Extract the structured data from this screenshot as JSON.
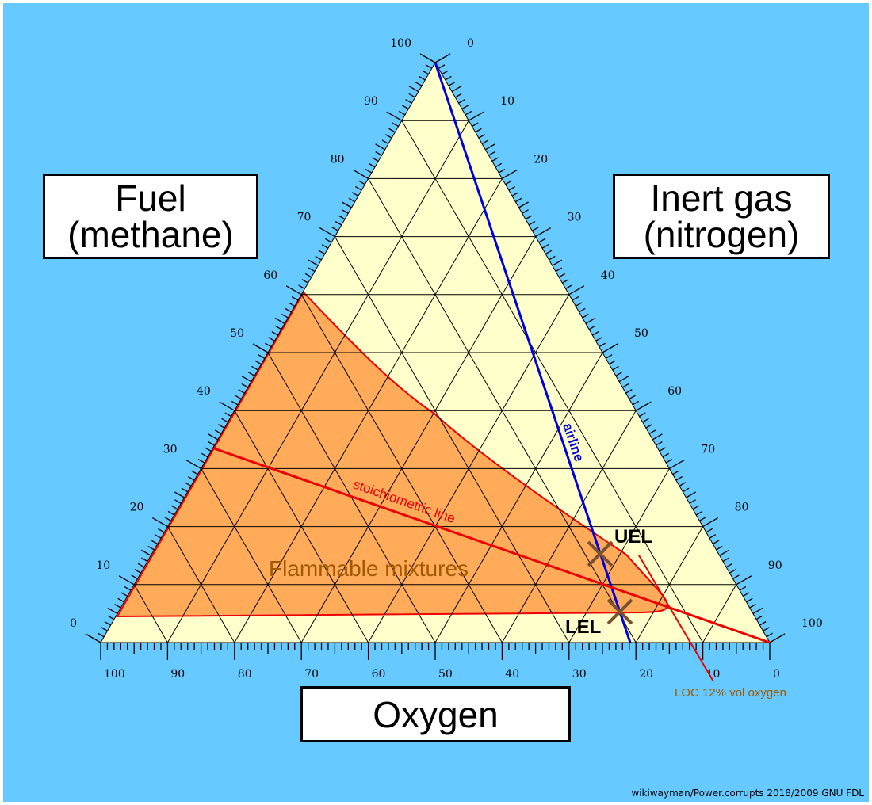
{
  "axes": {
    "fuel": {
      "line1": "Fuel",
      "line2": "(methane)"
    },
    "inert": {
      "line1": "Inert gas",
      "line2": "(nitrogen)"
    },
    "oxygen": {
      "label": "Oxygen"
    },
    "tick_values": [
      0,
      10,
      20,
      30,
      40,
      50,
      60,
      70,
      80,
      90,
      100
    ]
  },
  "regions": {
    "flammable_label": "Flammable mixtures",
    "flammable_color": "#ffab5a",
    "background_color": "#ffffcc"
  },
  "lines": {
    "air_label": "airline",
    "air_color": "#0000dd",
    "stoich_label": "stoichiometric line",
    "stoich_color": "#ee0000"
  },
  "points": {
    "uel_label": "UEL",
    "lel_label": "LEL",
    "marker_color": "#7a5230"
  },
  "annotation": {
    "loc_label": "LOC 12% vol oxygen",
    "loc_color": "#a05a00"
  },
  "credit": "wikiwayman/Power.corrupts 2018/2009 GNU FDL"
}
